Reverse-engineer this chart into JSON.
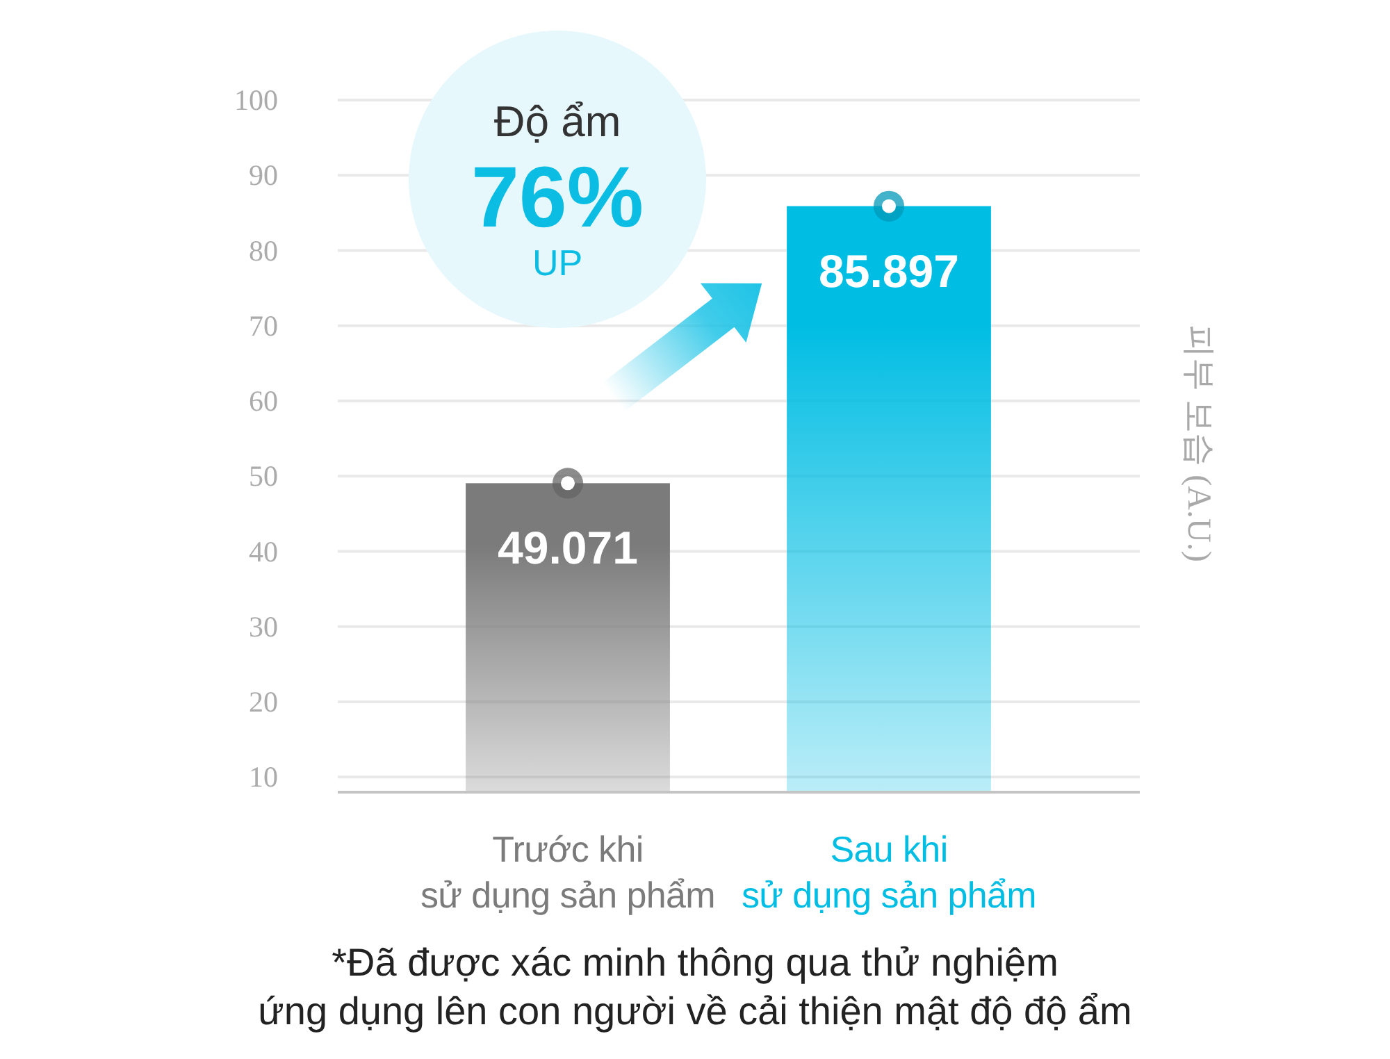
{
  "chart_data": {
    "type": "bar",
    "categories": [
      "Trước khi\nsử dụng sản phẩm",
      "Sau khi\nsử dụng sản phẩm"
    ],
    "values": [
      49.071,
      85.897
    ],
    "colors": [
      "#7b7b7b",
      "#00bde3"
    ],
    "ylabel": "피부 보습 (A.U.)",
    "ylim": [
      8,
      100
    ],
    "yticks": [
      10,
      20,
      30,
      40,
      50,
      60,
      70,
      80,
      90,
      100
    ],
    "grid": "y",
    "data_labels": true,
    "annotations": [
      "Độ ẩm\n76%\nUP",
      "*Đã được xác minh thông qua thử nghiệm\nứng dụng lên con người về cải thiện mật độ độ ẩm"
    ]
  }
}
